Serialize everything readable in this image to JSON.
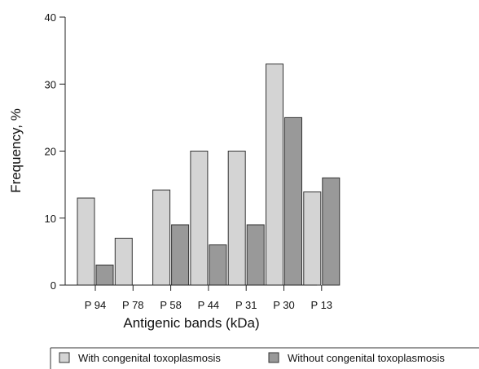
{
  "chart_data": {
    "type": "bar",
    "xlabel": "Antigenic bands (kDa)",
    "ylabel": "Frequency, %",
    "ylim": [
      0,
      40
    ],
    "yticks": [
      0,
      10,
      20,
      30,
      40
    ],
    "categories": [
      "P 94",
      "P 78",
      "P 58",
      "P 44",
      "P 31",
      "P 30",
      "P 13"
    ],
    "series": [
      {
        "name": "With congenital toxoplasmosis",
        "values": [
          13,
          7,
          14.2,
          20,
          20,
          33,
          13.9
        ],
        "color": "#d4d4d4"
      },
      {
        "name": "Without congenital toxoplasmosis",
        "values": [
          3,
          0,
          9,
          6,
          9,
          25,
          16
        ],
        "color": "#999999"
      }
    ],
    "grid": false,
    "legend_position": "bottom"
  }
}
